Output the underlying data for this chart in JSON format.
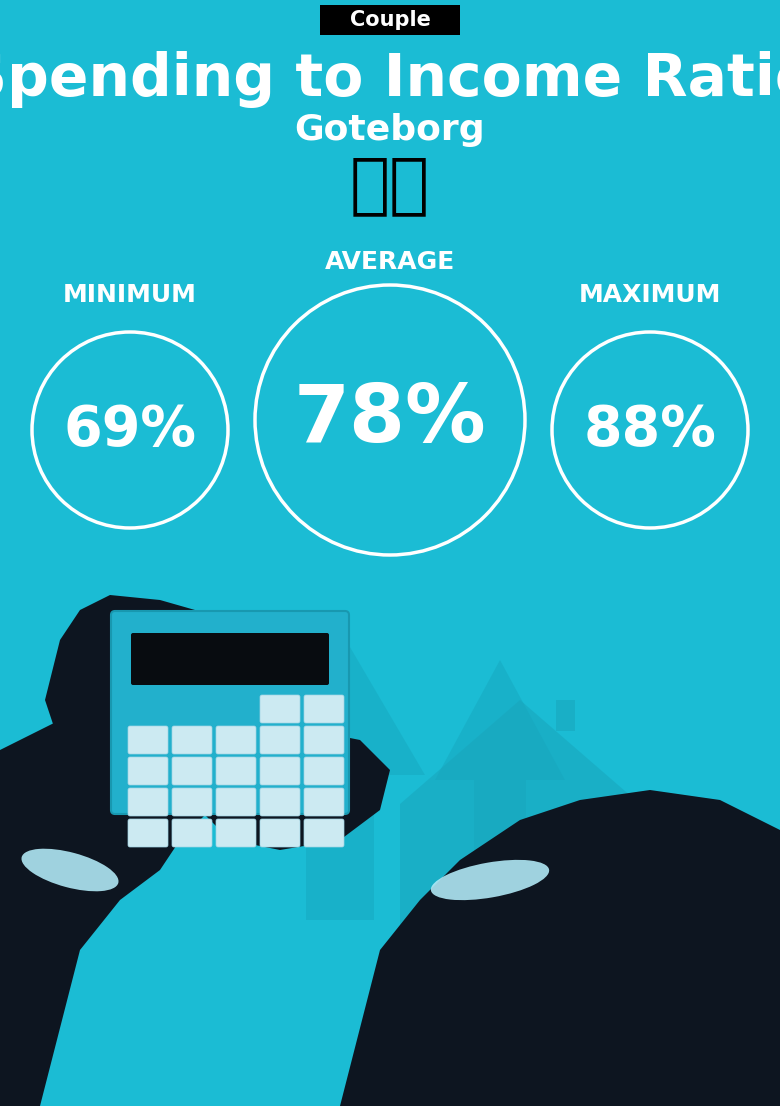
{
  "bg_color": "#1bbcd4",
  "tag_bg": "#000000",
  "tag_text": "Couple",
  "tag_text_color": "#ffffff",
  "title": "Spending to Income Ratio",
  "subtitle": "Goteborg",
  "title_color": "#ffffff",
  "subtitle_color": "#ffffff",
  "avg_label": "AVERAGE",
  "min_label": "MINIMUM",
  "max_label": "MAXIMUM",
  "avg_value": "78%",
  "min_value": "69%",
  "max_value": "88%",
  "label_color": "#ffffff",
  "value_color": "#ffffff",
  "circle_edge_color": "#ffffff",
  "flag_emoji": "🇸🇪",
  "avg_fontsize": 58,
  "min_max_fontsize": 40,
  "title_fontsize": 42,
  "subtitle_fontsize": 26,
  "label_fontsize": 18,
  "tag_fontsize": 15,
  "illus_arrow_color": "#17a9c0",
  "illus_house_color": "#18a5bc",
  "illus_hand_color": "#0d1520",
  "illus_calc_color": "#22b0cc",
  "illus_calc_screen": "#080c10",
  "illus_btn_color": "#cceaf2",
  "illus_cuff_color": "#b0e8f5",
  "illus_money_color": "#1aafc8",
  "illus_dollar_color": "#d4c97a"
}
